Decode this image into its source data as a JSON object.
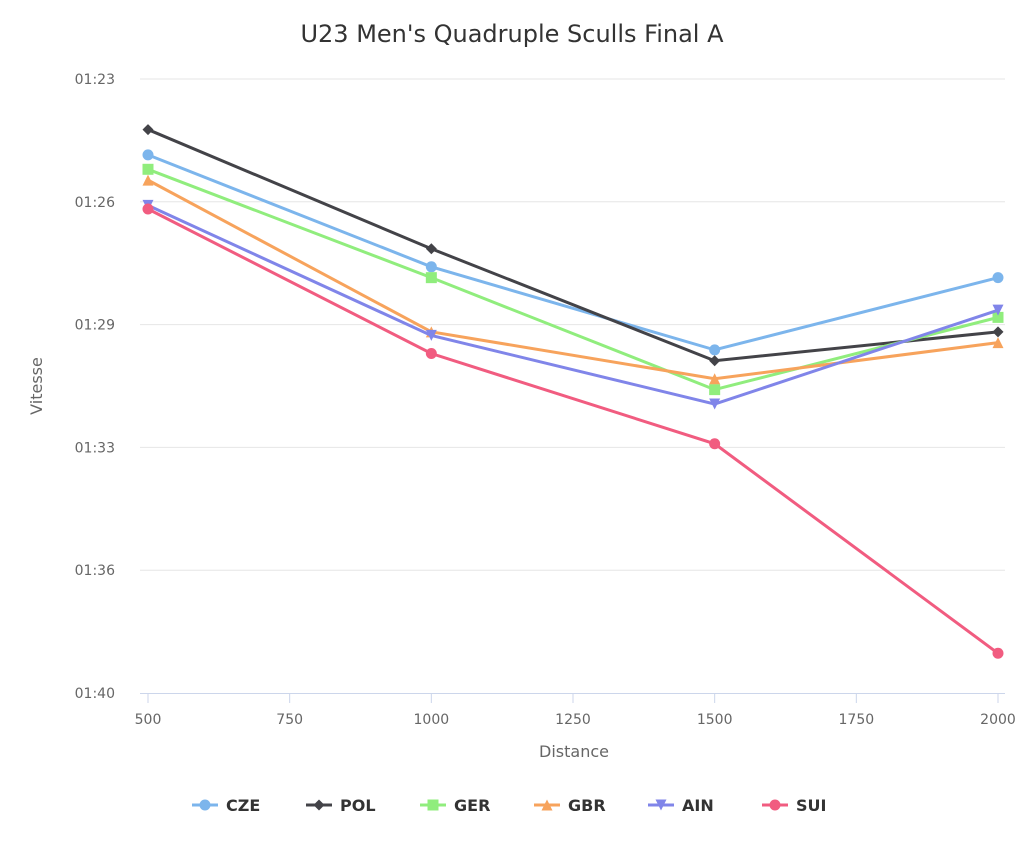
{
  "chart_data": {
    "type": "line",
    "title": "U23 Men's Quadruple Sculls Final A",
    "xlabel": "Distance",
    "ylabel": "Vitesse",
    "x": [
      500,
      1000,
      1500,
      2000
    ],
    "x_ticks": [
      "500",
      "750",
      "1000",
      "1250",
      "1500",
      "1750",
      "2000"
    ],
    "y_ticks": [
      "01:23",
      "01:26",
      "01:29",
      "01:33",
      "01:36",
      "01:40"
    ],
    "ylim": [
      "01:23.0",
      "01:40.0"
    ],
    "y_reversed": true,
    "grid": "horizontal",
    "legend_position": "bottom",
    "series": [
      {
        "name": "CZE",
        "color": "#7cb5ec",
        "marker": "circle",
        "values": [
          "01:25.1",
          "01:28.2",
          "01:30.5",
          "01:28.5"
        ]
      },
      {
        "name": "POL",
        "color": "#434348",
        "marker": "diamond",
        "values": [
          "01:24.4",
          "01:27.7",
          "01:30.8",
          "01:30.0"
        ]
      },
      {
        "name": "GER",
        "color": "#90ed7d",
        "marker": "square",
        "values": [
          "01:25.5",
          "01:28.5",
          "01:31.6",
          "01:29.6"
        ]
      },
      {
        "name": "GBR",
        "color": "#f7a35c",
        "marker": "triangle",
        "values": [
          "01:25.8",
          "01:30.0",
          "01:31.3",
          "01:30.3"
        ]
      },
      {
        "name": "AIN",
        "color": "#8085e9",
        "marker": "triangle-down",
        "values": [
          "01:26.5",
          "01:30.1",
          "01:32.0",
          "01:29.4"
        ]
      },
      {
        "name": "SUI",
        "color": "#f15c80",
        "marker": "circle",
        "values": [
          "01:26.6",
          "01:30.6",
          "01:33.1",
          "01:38.9"
        ]
      }
    ]
  }
}
